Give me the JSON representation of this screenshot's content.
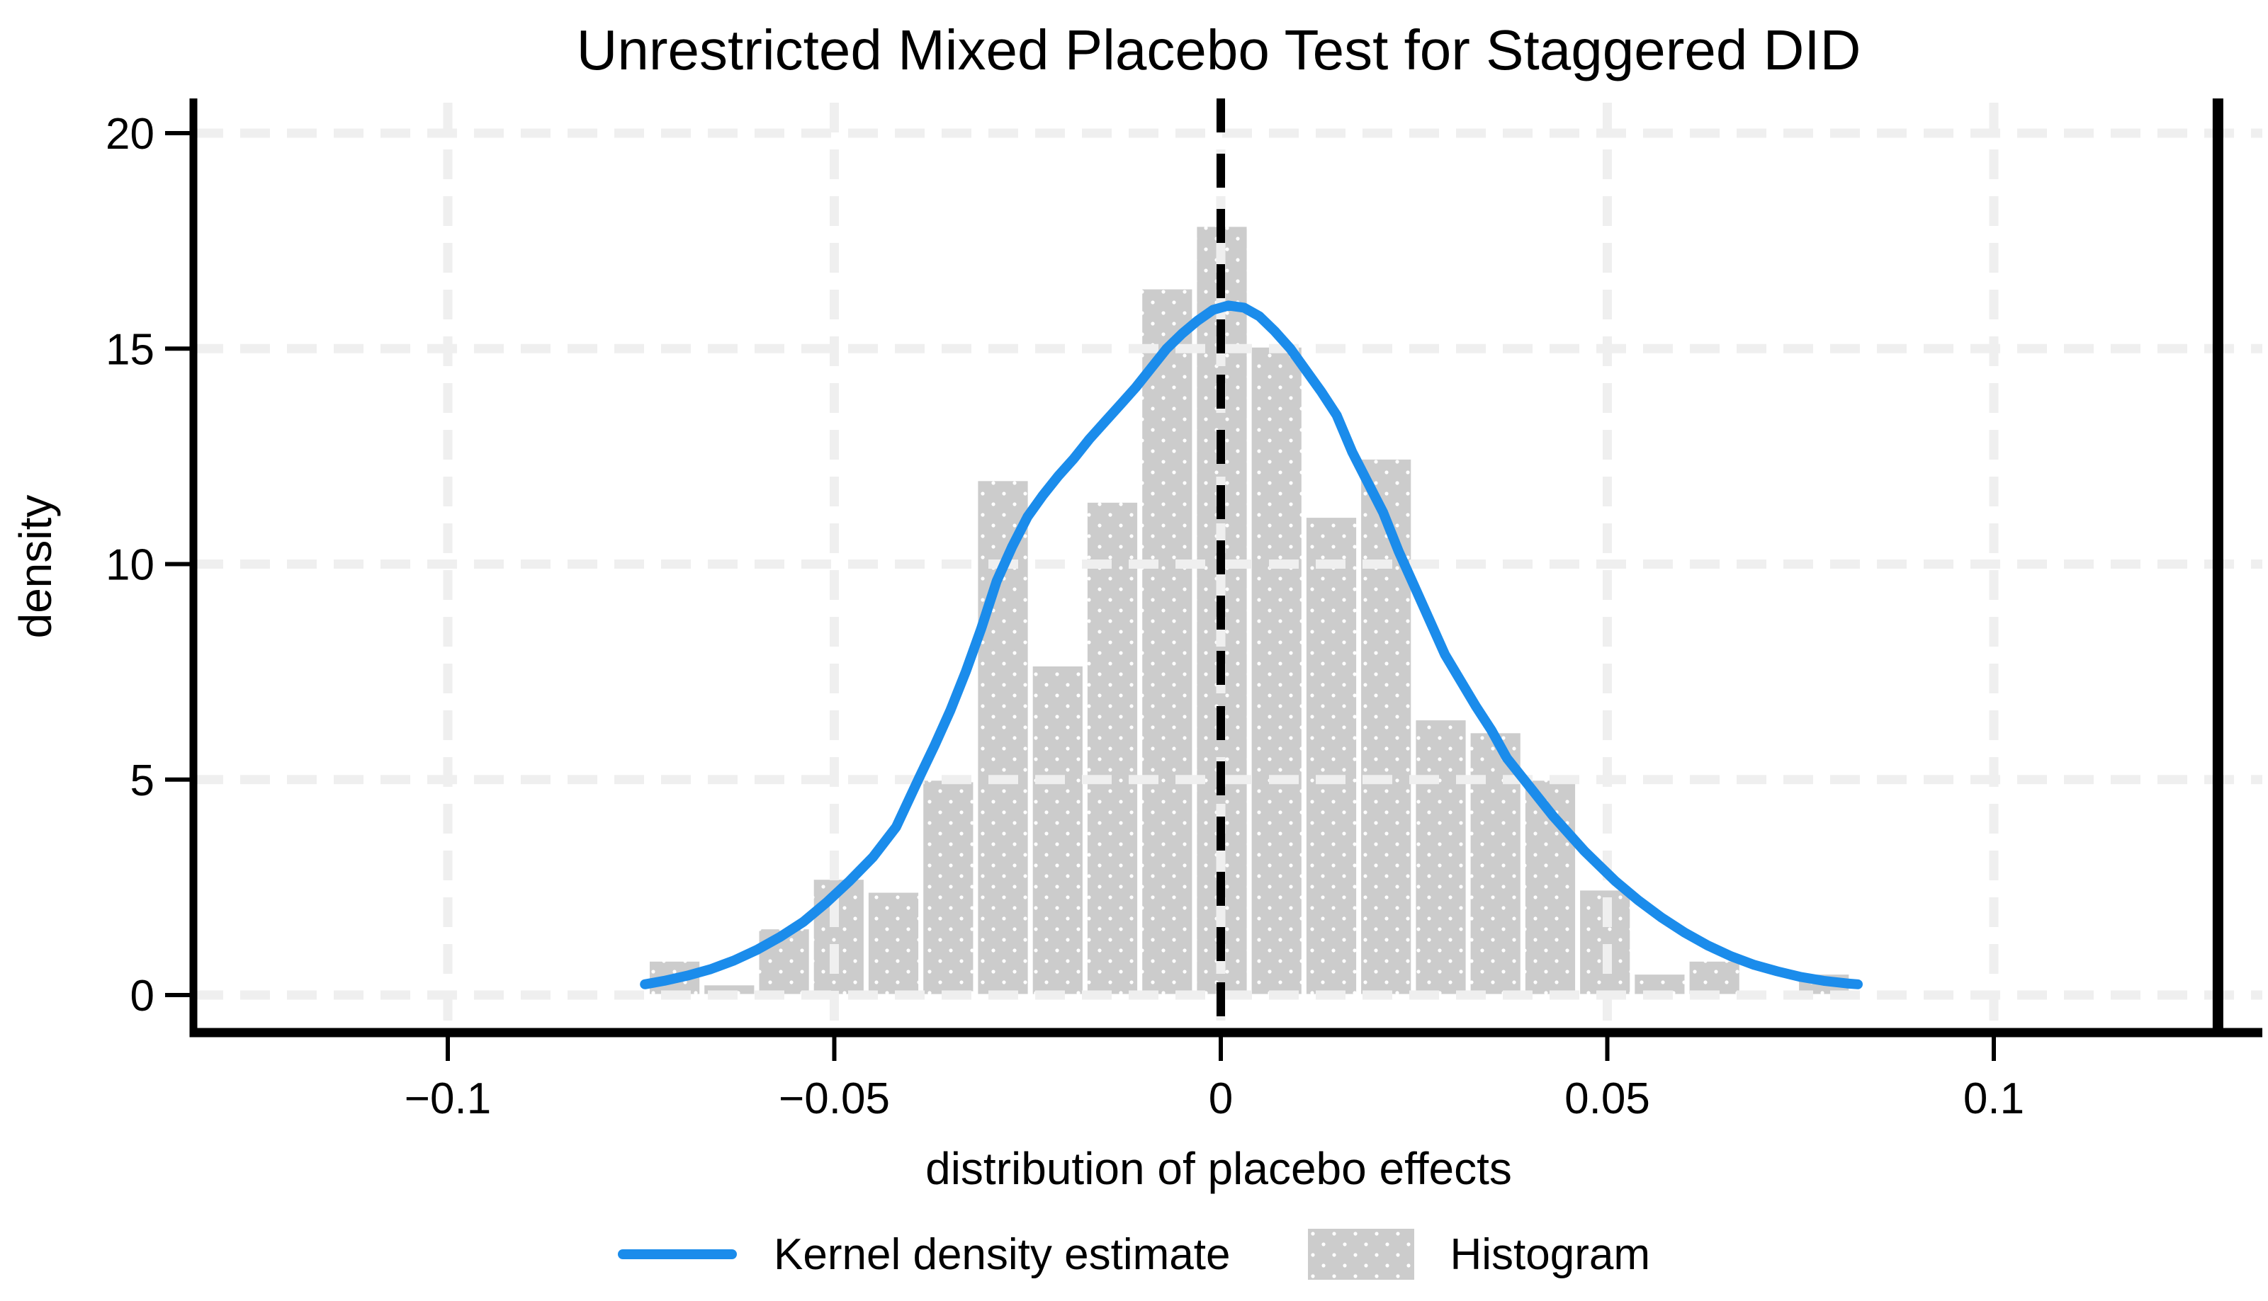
{
  "title": "Unrestricted Mixed Placebo Test for Staggered DID",
  "axes": {
    "x_label": "distribution of placebo effects",
    "y_label": "density"
  },
  "legend": {
    "kde_label": "Kernel density estimate",
    "hist_label": "Histogram"
  },
  "colors": {
    "kde_line": "#1b8ceb",
    "bar_fill": "#c9c9c9",
    "bar_outline": "#ffffff",
    "gridline": "#efefef",
    "axis": "#000000",
    "zero_dash_line": "#000000",
    "effect_line": "#000000"
  },
  "chart_data": {
    "type": "histogram+kde",
    "title": "Unrestricted Mixed Placebo Test for Staggered DID",
    "xlabel": "distribution of placebo effects",
    "ylabel": "density",
    "xlim": [
      -0.133,
      0.135
    ],
    "ylim": [
      0,
      20
    ],
    "grid": "dashed light-gray horizontal and vertical at ticks",
    "legend_position": "bottom center",
    "x_ticks": [
      {
        "value": -0.1,
        "label": "−0.1"
      },
      {
        "value": -0.05,
        "label": "−0.05"
      },
      {
        "value": 0,
        "label": "0"
      },
      {
        "value": 0.05,
        "label": "0.05"
      },
      {
        "value": 0.1,
        "label": "0.1"
      }
    ],
    "y_ticks": [
      {
        "value": 0,
        "label": "0"
      },
      {
        "value": 5,
        "label": "5"
      },
      {
        "value": 10,
        "label": "10"
      },
      {
        "value": 15,
        "label": "15"
      },
      {
        "value": 20,
        "label": "20"
      }
    ],
    "histogram": {
      "bin_start": -0.0742,
      "bin_width": 0.00708,
      "densities": [
        0.8,
        0.25,
        1.55,
        2.7,
        2.4,
        5.0,
        11.95,
        7.65,
        11.45,
        16.4,
        17.85,
        15.05,
        11.1,
        12.45,
        6.4,
        6.1,
        5.0,
        2.45,
        0.5,
        0.8,
        0,
        0.5
      ]
    },
    "kde_points": [
      [
        -0.0745,
        0.25
      ],
      [
        -0.072,
        0.33
      ],
      [
        -0.069,
        0.45
      ],
      [
        -0.066,
        0.6
      ],
      [
        -0.063,
        0.8
      ],
      [
        -0.06,
        1.05
      ],
      [
        -0.057,
        1.35
      ],
      [
        -0.054,
        1.7
      ],
      [
        -0.051,
        2.15
      ],
      [
        -0.048,
        2.65
      ],
      [
        -0.045,
        3.2
      ],
      [
        -0.042,
        3.9
      ],
      [
        -0.039,
        5.05
      ],
      [
        -0.037,
        5.8
      ],
      [
        -0.035,
        6.6
      ],
      [
        -0.033,
        7.5
      ],
      [
        -0.031,
        8.5
      ],
      [
        -0.029,
        9.6
      ],
      [
        -0.027,
        10.4
      ],
      [
        -0.025,
        11.1
      ],
      [
        -0.023,
        11.6
      ],
      [
        -0.021,
        12.05
      ],
      [
        -0.019,
        12.45
      ],
      [
        -0.017,
        12.9
      ],
      [
        -0.015,
        13.3
      ],
      [
        -0.013,
        13.7
      ],
      [
        -0.011,
        14.1
      ],
      [
        -0.009,
        14.55
      ],
      [
        -0.007,
        15.0
      ],
      [
        -0.005,
        15.35
      ],
      [
        -0.003,
        15.65
      ],
      [
        -0.001,
        15.9
      ],
      [
        0.001,
        16.0
      ],
      [
        0.003,
        15.95
      ],
      [
        0.005,
        15.75
      ],
      [
        0.007,
        15.4
      ],
      [
        0.009,
        15.0
      ],
      [
        0.011,
        14.5
      ],
      [
        0.013,
        14.0
      ],
      [
        0.015,
        13.45
      ],
      [
        0.017,
        12.6
      ],
      [
        0.019,
        11.9
      ],
      [
        0.021,
        11.2
      ],
      [
        0.023,
        10.3
      ],
      [
        0.025,
        9.5
      ],
      [
        0.027,
        8.7
      ],
      [
        0.029,
        7.9
      ],
      [
        0.031,
        7.3
      ],
      [
        0.033,
        6.7
      ],
      [
        0.035,
        6.15
      ],
      [
        0.037,
        5.5
      ],
      [
        0.039,
        5.05
      ],
      [
        0.041,
        4.6
      ],
      [
        0.043,
        4.15
      ],
      [
        0.045,
        3.75
      ],
      [
        0.047,
        3.35
      ],
      [
        0.049,
        3.0
      ],
      [
        0.051,
        2.65
      ],
      [
        0.054,
        2.2
      ],
      [
        0.057,
        1.8
      ],
      [
        0.06,
        1.45
      ],
      [
        0.063,
        1.15
      ],
      [
        0.066,
        0.9
      ],
      [
        0.069,
        0.7
      ],
      [
        0.072,
        0.55
      ],
      [
        0.075,
        0.42
      ],
      [
        0.078,
        0.33
      ],
      [
        0.081,
        0.27
      ],
      [
        0.0824,
        0.25
      ]
    ],
    "zero_reference_line_x": 0,
    "solid_reference_line_x": 0.129,
    "legend": [
      {
        "label": "Kernel density estimate",
        "type": "line",
        "color": "#1b8ceb"
      },
      {
        "label": "Histogram",
        "type": "patch",
        "color": "#c9c9c9"
      }
    ]
  }
}
